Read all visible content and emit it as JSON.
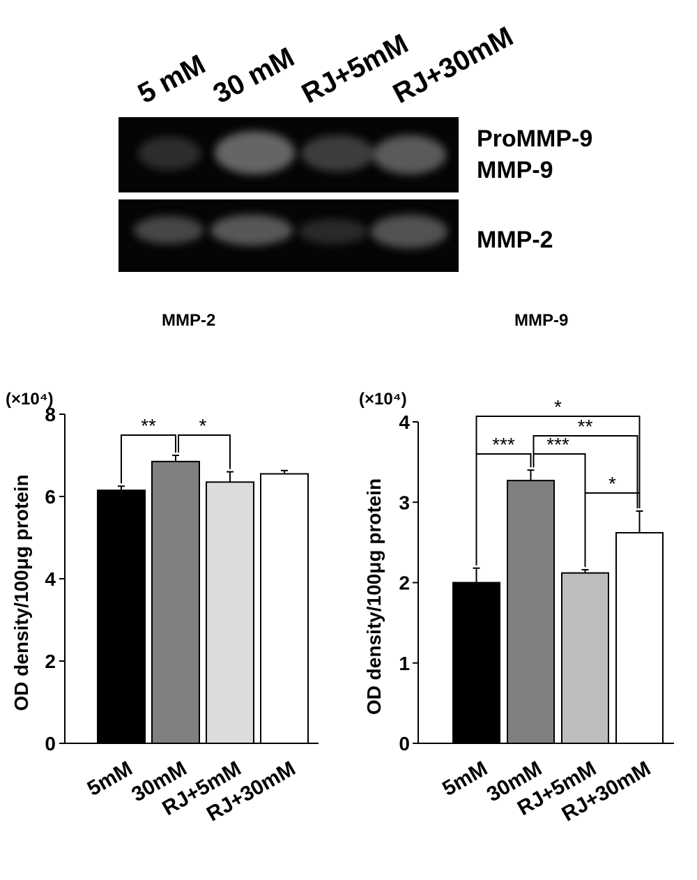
{
  "gel": {
    "lanes": [
      "5 mM",
      "30 mM",
      "RJ+5mM",
      "RJ+30mM"
    ],
    "bands_top": [
      "ProMMP-9",
      "MMP-9"
    ],
    "bands_bottom": [
      "MMP-2"
    ]
  },
  "chart_data": [
    {
      "type": "bar",
      "title": "MMP-2",
      "categories": [
        "5mM",
        "30mM",
        "RJ+5mM",
        "RJ+30mM"
      ],
      "values": [
        6.15,
        6.85,
        6.35,
        6.55
      ],
      "errors": [
        0.1,
        0.15,
        0.25,
        0.08
      ],
      "colors": [
        "#000000",
        "#808080",
        "#dcdcdc",
        "#ffffff"
      ],
      "ylabel": "OD density/100μg protein",
      "unit": "(×10⁴)",
      "ylim": [
        0,
        8
      ],
      "yticks": [
        0,
        2,
        4,
        6,
        8
      ],
      "significance": [
        {
          "from": 0,
          "to": 1,
          "label": "**"
        },
        {
          "from": 1,
          "to": 2,
          "label": "*"
        }
      ]
    },
    {
      "type": "bar",
      "title": "MMP-9",
      "categories": [
        "5mM",
        "30mM",
        "RJ+5mM",
        "RJ+30mM"
      ],
      "values": [
        2.0,
        3.27,
        2.12,
        2.62
      ],
      "errors": [
        0.18,
        0.13,
        0.04,
        0.27
      ],
      "colors": [
        "#000000",
        "#808080",
        "#bdbdbd",
        "#ffffff"
      ],
      "ylabel": "OD density/100μg protein",
      "unit": "(×10⁴)",
      "ylim": [
        0,
        4
      ],
      "yticks": [
        0,
        1,
        2,
        3,
        4
      ],
      "significance": [
        {
          "from": 0,
          "to": 3,
          "label": "*"
        },
        {
          "from": 1,
          "to": 3,
          "label": "**"
        },
        {
          "from": 0,
          "to": 1,
          "label": "***"
        },
        {
          "from": 1,
          "to": 2,
          "label": "***"
        },
        {
          "from": 2,
          "to": 3,
          "label": "*"
        }
      ]
    }
  ]
}
